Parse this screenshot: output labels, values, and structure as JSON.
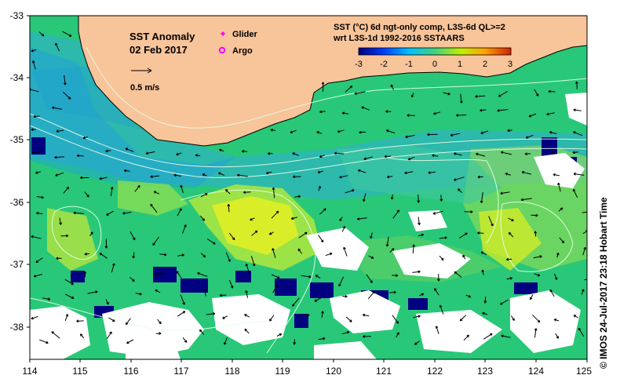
{
  "map": {
    "title": "SST Anomaly",
    "date": "02 Feb 2017",
    "scale_label": "0.5 m/s",
    "legend": {
      "glider_label": "Glider",
      "argo_label": "Argo",
      "glider_color": "#ff00ff",
      "argo_color": "#ff00ff"
    },
    "product_line1": "SST (°C) 6d ngt-only comp, L3S-6d QL>=2",
    "product_line2": "wrt L3S-1d 1992-2016 SSTAARS",
    "colorbar": {
      "ticks": [
        "-3",
        "-2",
        "-1",
        "0",
        "1",
        "2",
        "3"
      ],
      "colors": [
        "#000080",
        "#0040ff",
        "#00c0ff",
        "#40d080",
        "#c0f000",
        "#ffa000",
        "#d02000"
      ]
    },
    "lat_labels": [
      "-33",
      "-34",
      "-35",
      "-36",
      "-37",
      "-38"
    ],
    "lon_labels": [
      "114",
      "115",
      "116",
      "117",
      "118",
      "119",
      "120",
      "121",
      "122",
      "123",
      "124",
      "125"
    ],
    "credit": "©  IMOS 24-Jul-2017 23:18 Hobart Time",
    "colors": {
      "land": "#f8c49a",
      "anomaly_base": "#28c878",
      "missing": "#ffffff"
    }
  }
}
